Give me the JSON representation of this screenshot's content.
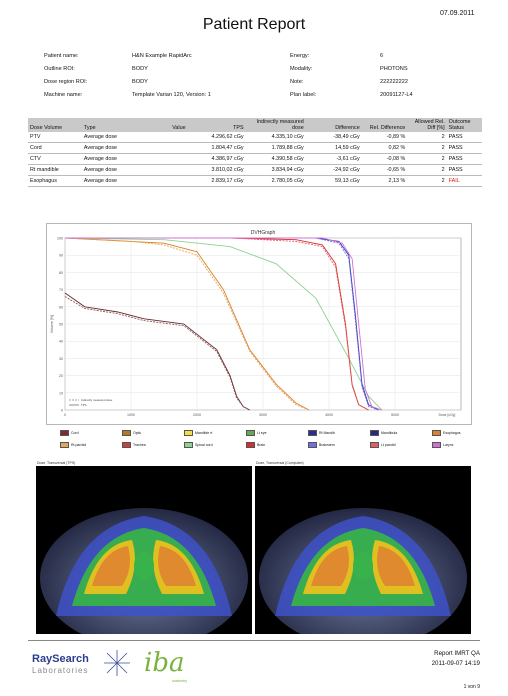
{
  "header": {
    "date": "07.09.2011",
    "title": "Patient Report"
  },
  "info_left": [
    {
      "label": "Patient name:",
      "value": "H&N Example RapidArc"
    },
    {
      "label": "Outline ROI:",
      "value": "BODY"
    },
    {
      "label": "Dose region ROI:",
      "value": "BODY"
    },
    {
      "label": "Machine name:",
      "value": "Template Varian 120, Version: 1"
    }
  ],
  "info_right": [
    {
      "label": "Energy:",
      "value": "6"
    },
    {
      "label": "Modality:",
      "value": "PHOTONS"
    },
    {
      "label": "Note:",
      "value": "222222222"
    },
    {
      "label": "Plan label:",
      "value": "20091127-L4"
    }
  ],
  "results": {
    "headers": [
      "Dose Volume",
      "Type",
      "Value",
      "TPS",
      "Indirectly measured dose",
      "Difference",
      "Rel. Difference",
      "Allowed Rel. Diff [%]",
      "Outcome Status"
    ],
    "rows": [
      {
        "volume": "PTV",
        "type": "Average dose",
        "value": "",
        "tps": "4.296,62 cGy",
        "measured": "4.335,10 cGy",
        "diff": "-38,49 cGy",
        "rel": "-0,89 %",
        "allowed": "2",
        "status": "PASS"
      },
      {
        "volume": "Cord",
        "type": "Average dose",
        "value": "",
        "tps": "1.804,47 cGy",
        "measured": "1.789,88 cGy",
        "diff": "14,59 cGy",
        "rel": "0,82 %",
        "allowed": "2",
        "status": "PASS"
      },
      {
        "volume": "CTV",
        "type": "Average dose",
        "value": "",
        "tps": "4.386,97 cGy",
        "measured": "4.390,58 cGy",
        "diff": "-3,61 cGy",
        "rel": "-0,08 %",
        "allowed": "2",
        "status": "PASS"
      },
      {
        "volume": "Rt mandible",
        "type": "Average dose",
        "value": "",
        "tps": "3.810,02 cGy",
        "measured": "3.834,94 cGy",
        "diff": "-24,92 cGy",
        "rel": "-0,65 %",
        "allowed": "2",
        "status": "PASS"
      },
      {
        "volume": "Esophagus",
        "type": "Average dose",
        "value": "",
        "tps": "2.839,17 cGy",
        "measured": "2.780,05 cGy",
        "diff": "59,13 cGy",
        "rel": "2,13 %",
        "allowed": "2",
        "status": "FAIL"
      }
    ]
  },
  "chart_data": {
    "type": "line",
    "title": "DVHGraph",
    "xlabel": "Dose [cGy]",
    "ylabel": "Volume [%]",
    "xlim": [
      0,
      6000
    ],
    "ylim": [
      0,
      100
    ],
    "x_ticks": [
      "0",
      "1000",
      "2000",
      "3000",
      "4000",
      "5000"
    ],
    "y_ticks": [
      "0",
      "10",
      "20",
      "30",
      "40",
      "50",
      "60",
      "70",
      "80",
      "90",
      "100"
    ],
    "legend_note": [
      "Indirectly measured dose",
      "TPS"
    ],
    "series": [
      {
        "color": "#6b2b2b",
        "style": "solid",
        "x": [
          0,
          300,
          800,
          1200,
          1800,
          2300,
          2500,
          2600,
          2700,
          2800
        ],
        "y": [
          68,
          60,
          57,
          53,
          50,
          35,
          20,
          8,
          2,
          0
        ]
      },
      {
        "color": "#8a5a5a",
        "style": "dashed",
        "x": [
          0,
          300,
          800,
          1200,
          1800,
          2300,
          2500,
          2600,
          2700,
          2800
        ],
        "y": [
          66,
          59,
          56,
          52,
          49,
          34,
          19,
          7,
          2,
          0
        ]
      },
      {
        "color": "#d9822b",
        "style": "solid",
        "x": [
          0,
          1000,
          1500,
          2000,
          2400,
          2800,
          3200,
          3500,
          3700
        ],
        "y": [
          100,
          98,
          97,
          92,
          70,
          35,
          15,
          4,
          0
        ]
      },
      {
        "color": "#e8a45a",
        "style": "dashed",
        "x": [
          0,
          1000,
          1500,
          2000,
          2400,
          2800,
          3200,
          3500,
          3700
        ],
        "y": [
          100,
          98,
          96,
          90,
          68,
          34,
          14,
          3,
          0
        ]
      },
      {
        "color": "#8fd18f",
        "style": "solid",
        "x": [
          0,
          1500,
          2500,
          3200,
          3800,
          4300,
          4600,
          4800
        ],
        "y": [
          100,
          99,
          95,
          85,
          65,
          30,
          8,
          0
        ]
      },
      {
        "color": "#d23030",
        "style": "solid",
        "x": [
          0,
          2500,
          3500,
          3900,
          4100,
          4250,
          4350,
          4450,
          4600
        ],
        "y": [
          100,
          100,
          99,
          96,
          85,
          50,
          15,
          3,
          0
        ]
      },
      {
        "color": "#e06060",
        "style": "dashed",
        "x": [
          0,
          2500,
          3500,
          3900,
          4100,
          4250,
          4350,
          4450,
          4600
        ],
        "y": [
          100,
          100,
          98,
          95,
          83,
          48,
          14,
          3,
          0
        ]
      },
      {
        "color": "#3030b0",
        "style": "solid",
        "x": [
          0,
          3000,
          3800,
          4150,
          4300,
          4400,
          4500,
          4600,
          4750
        ],
        "y": [
          100,
          100,
          100,
          98,
          90,
          55,
          15,
          3,
          0
        ]
      },
      {
        "color": "#7070e0",
        "style": "dashed",
        "x": [
          0,
          3000,
          3800,
          4150,
          4300,
          4400,
          4500,
          4600,
          4750
        ],
        "y": [
          100,
          100,
          100,
          97,
          88,
          52,
          13,
          2,
          0
        ]
      },
      {
        "color": "#d070d0",
        "style": "solid",
        "x": [
          0,
          3000,
          3900,
          4200,
          4350,
          4450,
          4550,
          4650,
          4800
        ],
        "y": [
          100,
          100,
          100,
          97,
          88,
          50,
          12,
          2,
          0
        ]
      }
    ]
  },
  "legend": [
    {
      "label": "Cord",
      "color": "#7a2e2e"
    },
    {
      "label": "Optic",
      "color": "#b07a2a"
    },
    {
      "label": "Mandible rt",
      "color": "#f0e040"
    },
    {
      "label": "Lt eye",
      "color": "#6aa84f"
    },
    {
      "label": "Rt Mandib",
      "color": "#2d2d9a"
    },
    {
      "label": "Mandibula",
      "color": "#2a2a7a"
    },
    {
      "label": "Esophagus",
      "color": "#d9822b"
    },
    {
      "label": "Rt parotid",
      "color": "#e8a45a"
    },
    {
      "label": "Trachea",
      "color": "#c94040"
    },
    {
      "label": "Spinal cord",
      "color": "#8fd18f"
    },
    {
      "label": "Brain",
      "color": "#d23030"
    },
    {
      "label": "Brainstem",
      "color": "#7070e0"
    },
    {
      "label": "Lt parotid",
      "color": "#e06060"
    },
    {
      "label": "Larynx",
      "color": "#d070d0"
    }
  ],
  "images": {
    "left_caption": "Dose, Transversal (TPS)",
    "right_caption": "Dose, Transversal (Computed)"
  },
  "footer": {
    "company": "RaySearch",
    "company_sub": "Laboratories",
    "partner": "iba",
    "partner_sub": "dosimetry",
    "report_name": "Report IMRT QA",
    "report_date": "2011-09-07  14:19",
    "page": "1 von 9"
  }
}
